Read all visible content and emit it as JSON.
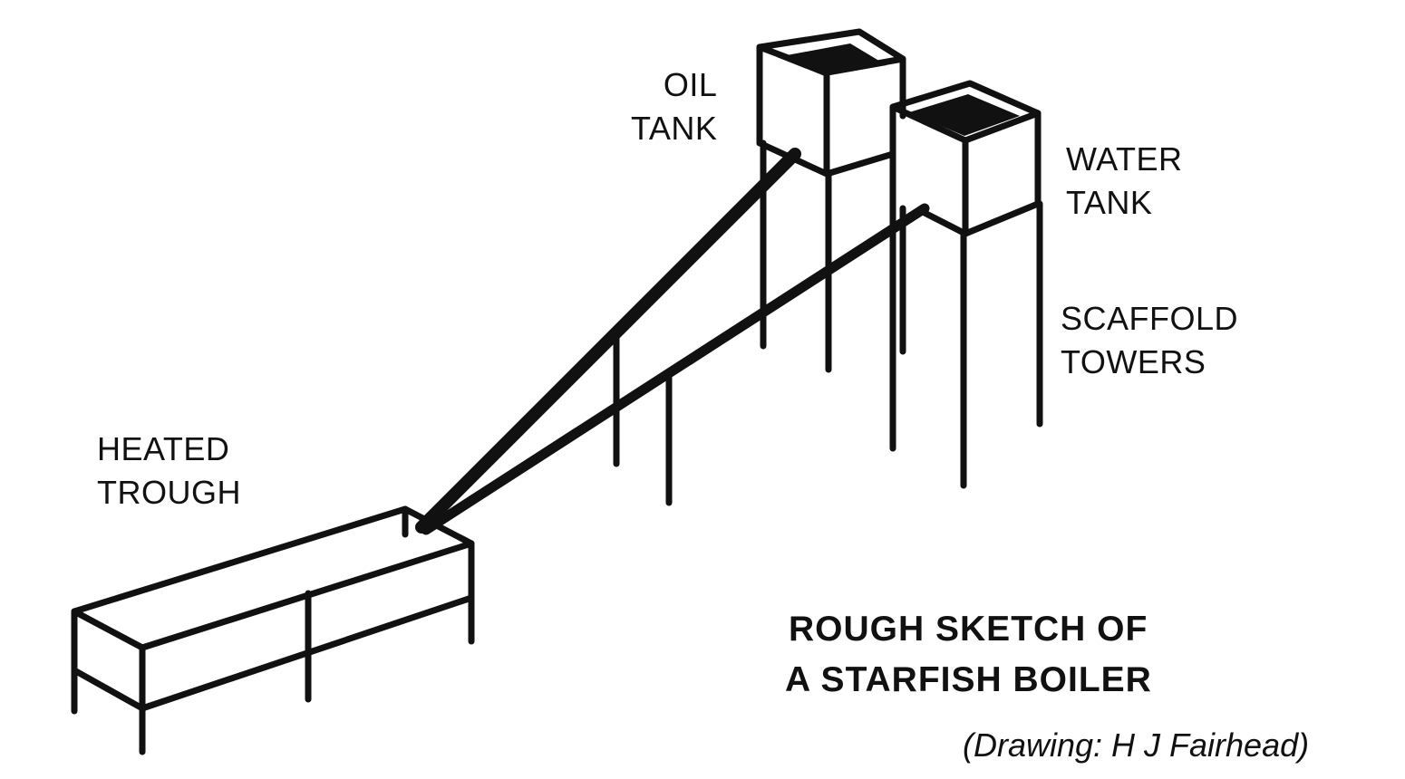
{
  "labels": {
    "oil_tank": [
      "OIL",
      "TANK"
    ],
    "water_tank": [
      "WATER",
      "TANK"
    ],
    "scaffold_towers": [
      "SCAFFOLD",
      "TOWERS"
    ],
    "heated_trough": [
      "HEATED",
      "TROUGH"
    ]
  },
  "title": [
    "ROUGH SKETCH OF",
    "A STARFISH BOILER"
  ],
  "credit": "(Drawing: H J Fairhead)",
  "colors": {
    "ink": "#111111",
    "background": "#ffffff"
  }
}
